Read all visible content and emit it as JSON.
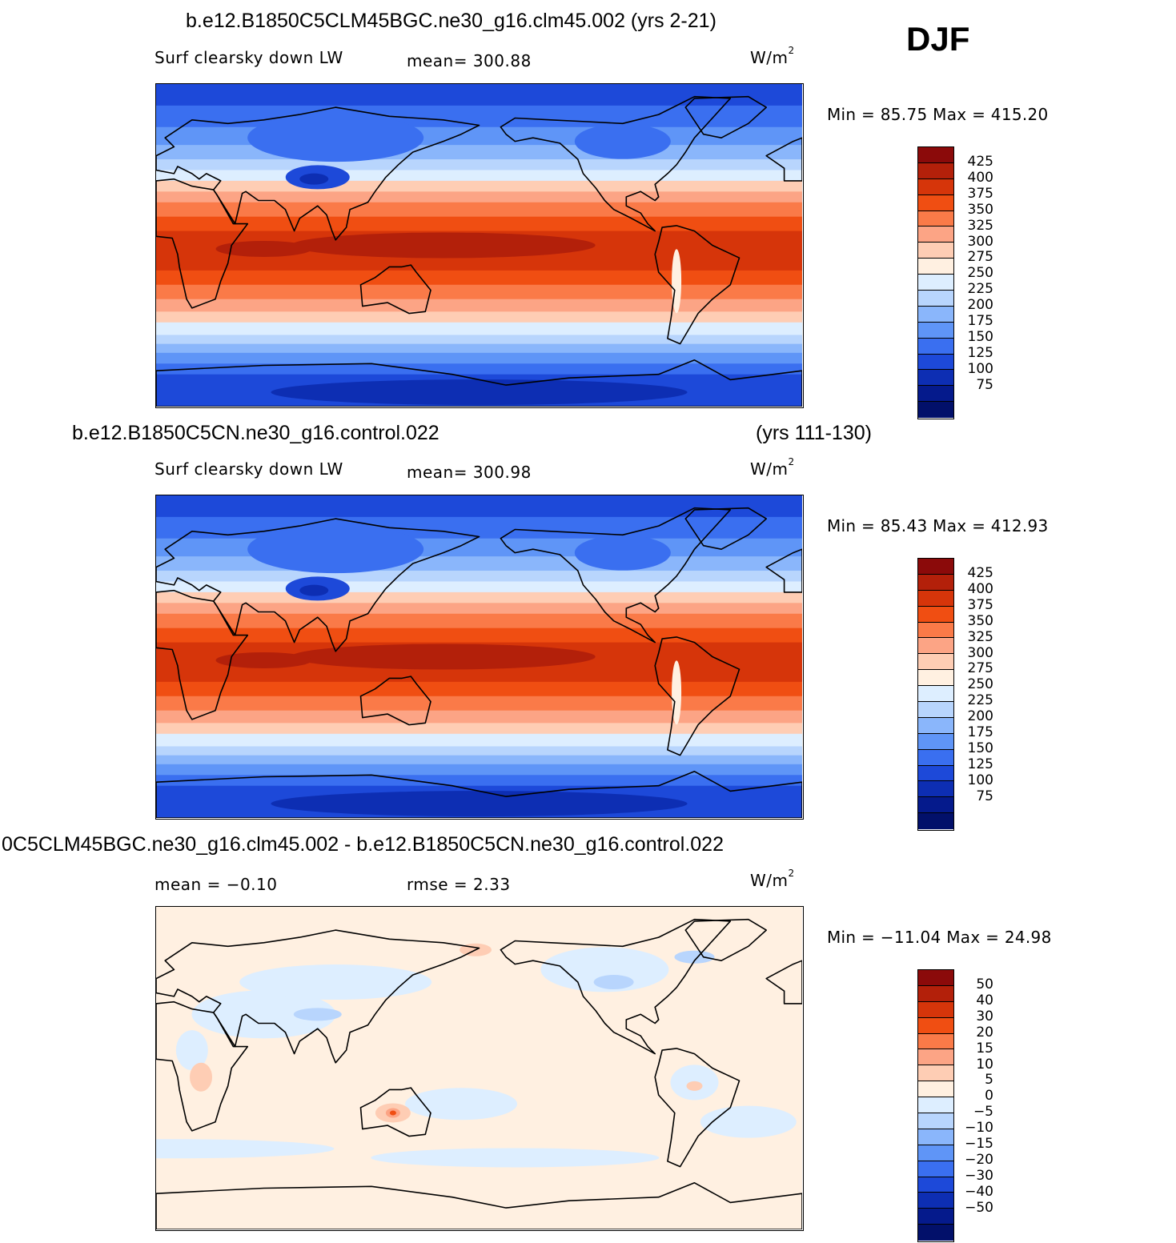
{
  "season": "DJF",
  "panels": [
    {
      "title_left": "b.e12.B1850C5CLM45BGC.ne30_g16.clm45.002 (yrs 2-21)",
      "title_right": "",
      "left_label": "Surf clearsky down LW",
      "center_label": "mean= 300.88",
      "units_base": "W/m",
      "units_sup": "2",
      "minmax": "Min =  85.75 Max = 415.20",
      "colorbar_labels": [
        "425",
        "400",
        "375",
        "350",
        "325",
        "300",
        "275",
        "250",
        "225",
        "200",
        "175",
        "150",
        "125",
        "100",
        "75"
      ],
      "colorbar_colors": [
        "#8b0a0a",
        "#b3200a",
        "#d6350a",
        "#f04e12",
        "#fa7a48",
        "#fca485",
        "#fecdb4",
        "#fff0e1",
        "#ddeeff",
        "#b8d5fd",
        "#8ab6fb",
        "#5f95f7",
        "#3a6ff0",
        "#1d49d9",
        "#0d2eb3",
        "#051a8c",
        "#02106a"
      ],
      "map_palette": "absolute"
    },
    {
      "title_left": "b.e12.B1850C5CN.ne30_g16.control.022",
      "title_right": "(yrs 111-130)",
      "left_label": "Surf clearsky down LW",
      "center_label": "mean= 300.98",
      "units_base": "W/m",
      "units_sup": "2",
      "minmax": "Min =  85.43 Max = 412.93",
      "colorbar_labels": [
        "425",
        "400",
        "375",
        "350",
        "325",
        "300",
        "275",
        "250",
        "225",
        "200",
        "175",
        "150",
        "125",
        "100",
        "75"
      ],
      "colorbar_colors": [
        "#8b0a0a",
        "#b3200a",
        "#d6350a",
        "#f04e12",
        "#fa7a48",
        "#fca485",
        "#fecdb4",
        "#fff0e1",
        "#ddeeff",
        "#b8d5fd",
        "#8ab6fb",
        "#5f95f7",
        "#3a6ff0",
        "#1d49d9",
        "#0d2eb3",
        "#051a8c",
        "#02106a"
      ],
      "map_palette": "absolute"
    },
    {
      "title_left": "0C5CLM45BGC.ne30_g16.clm45.002 - b.e12.B1850C5CN.ne30_g16.control.022",
      "title_right": "",
      "left_label": "mean =  −0.10",
      "center_label": "rmse =    2.33",
      "units_base": "W/m",
      "units_sup": "2",
      "minmax": "Min = −11.04 Max =  24.98",
      "colorbar_labels": [
        "50",
        "40",
        "30",
        "20",
        "15",
        "10",
        "5",
        "0",
        "−5",
        "−10",
        "−15",
        "−20",
        "−30",
        "−40",
        "−50"
      ],
      "colorbar_colors": [
        "#8b0a0a",
        "#b3200a",
        "#d6350a",
        "#f04e12",
        "#fa7a48",
        "#fca485",
        "#fecdb4",
        "#fff0e1",
        "#ddeeff",
        "#b8d5fd",
        "#8ab6fb",
        "#5f95f7",
        "#3a6ff0",
        "#1d49d9",
        "#0d2eb3",
        "#051a8c",
        "#02106a"
      ],
      "map_palette": "difference"
    }
  ]
}
